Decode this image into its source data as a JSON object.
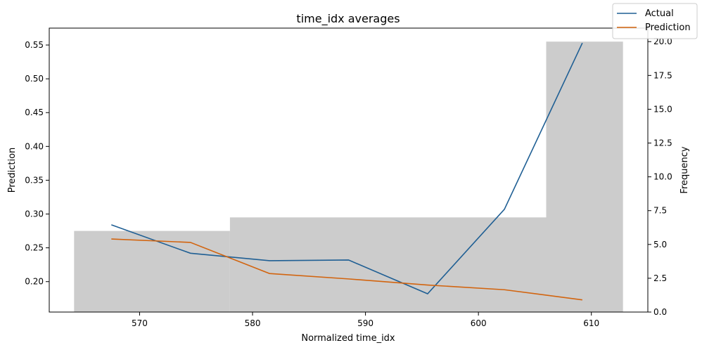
{
  "chart_data": {
    "type": "line",
    "title": "time_idx averages",
    "xlabel": "Normalized time_idx",
    "ylabel": "Prediction",
    "y2label": "Frequency",
    "xlim": [
      562,
      615
    ],
    "ylim": [
      0.155,
      0.575
    ],
    "y2lim": [
      0,
      21
    ],
    "xticks": [
      570,
      580,
      590,
      600,
      610
    ],
    "yticks": [
      0.2,
      0.25,
      0.3,
      0.35,
      0.4,
      0.45,
      0.5,
      0.55
    ],
    "y2ticks": [
      0.0,
      2.5,
      5.0,
      7.5,
      10.0,
      12.5,
      15.0,
      17.5,
      20.0
    ],
    "legend": "top-right",
    "histogram": {
      "name": "Frequency",
      "color": "#cccccc",
      "bins": [
        {
          "x0": 564.2,
          "x1": 578.0,
          "value": 6
        },
        {
          "x0": 578.0,
          "x1": 606.0,
          "value": 7
        },
        {
          "x0": 606.0,
          "x1": 612.8,
          "value": 20
        }
      ]
    },
    "series": [
      {
        "name": "Actual",
        "color": "#1f5f94",
        "x": [
          567.5,
          574.5,
          581.5,
          588.5,
          595.5,
          602.3,
          609.2
        ],
        "y": [
          0.284,
          0.242,
          0.231,
          0.232,
          0.182,
          0.307,
          0.553
        ]
      },
      {
        "name": "Prediction",
        "color": "#d2640f",
        "x": [
          567.5,
          574.5,
          581.5,
          588.5,
          595.5,
          602.3,
          609.2
        ],
        "y": [
          0.263,
          0.258,
          0.212,
          0.204,
          0.195,
          0.188,
          0.173
        ]
      }
    ]
  }
}
